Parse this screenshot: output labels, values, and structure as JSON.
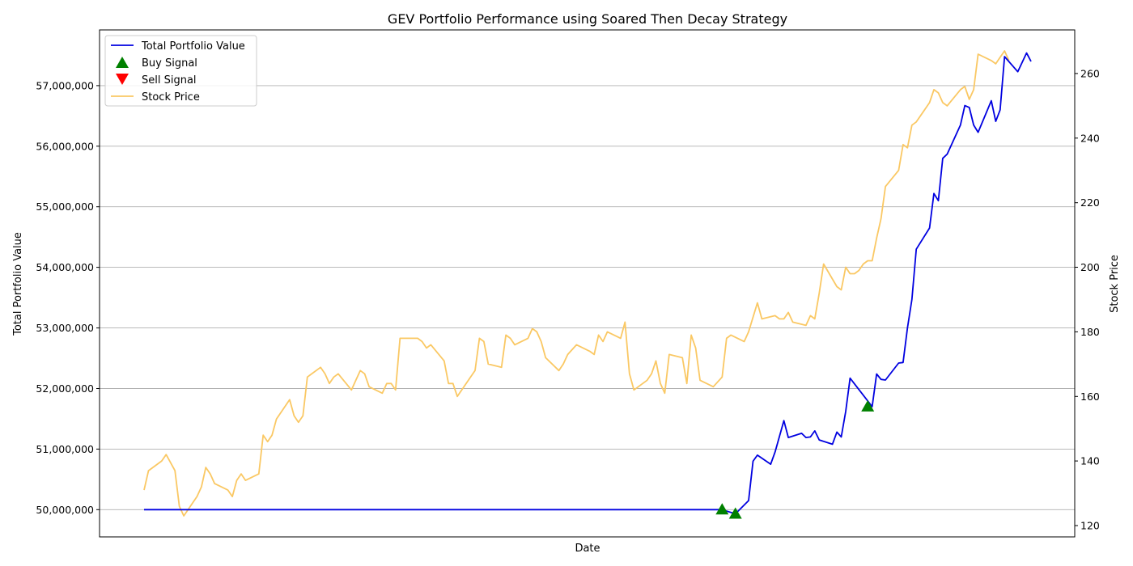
{
  "chart_data": {
    "type": "line",
    "title": "GEV Portfolio Performance using Soared Then Decay Strategy",
    "xlabel": "Date",
    "ylabel_left": "Total Portfolio Value",
    "ylabel_right": "Stock Price",
    "ylim_left": [
      49550000,
      57920000
    ],
    "ylim_right": [
      116.5,
      273.5
    ],
    "yticks_left": [
      50000000,
      51000000,
      52000000,
      53000000,
      54000000,
      55000000,
      56000000,
      57000000
    ],
    "ytick_labels_left": [
      "50,000,000",
      "51,000,000",
      "52,000,000",
      "53,000,000",
      "54,000,000",
      "55,000,000",
      "56,000,000",
      "57,000,000"
    ],
    "yticks_right": [
      120,
      140,
      160,
      180,
      200,
      220,
      240,
      260
    ],
    "ytick_labels_right": [
      "120",
      "140",
      "160",
      "180",
      "200",
      "220",
      "240",
      "260"
    ],
    "grid": "horizontal-left-axis",
    "legend_position": "top-left",
    "legend": [
      "Total Portfolio Value",
      "Buy Signal",
      "Sell Signal",
      "Stock Price"
    ],
    "colors": {
      "portfolio": "#0000e0",
      "stock": "#fac864",
      "buy": "#008000",
      "sell": "#ff0000",
      "grid": "#b0b0b0"
    },
    "series": [
      {
        "name": "Total Portfolio Value",
        "axis": "left",
        "points": [
          [
            0,
            50000000
          ],
          [
            131,
            50000000
          ],
          [
            134,
            49930000
          ],
          [
            137,
            50150000
          ],
          [
            138,
            50800000
          ],
          [
            139,
            50900000
          ],
          [
            142,
            50750000
          ],
          [
            143,
            50950000
          ],
          [
            145,
            51470000
          ],
          [
            146,
            51190000
          ],
          [
            149,
            51260000
          ],
          [
            150,
            51190000
          ],
          [
            151,
            51200000
          ],
          [
            152,
            51300000
          ],
          [
            153,
            51150000
          ],
          [
            156,
            51080000
          ],
          [
            157,
            51280000
          ],
          [
            158,
            51200000
          ],
          [
            159,
            51620000
          ],
          [
            160,
            52170000
          ],
          [
            165,
            51700000
          ],
          [
            166,
            52240000
          ],
          [
            167,
            52150000
          ],
          [
            168,
            52140000
          ],
          [
            171,
            52420000
          ],
          [
            172,
            52430000
          ],
          [
            173,
            53000000
          ],
          [
            174,
            53470000
          ],
          [
            175,
            54300000
          ],
          [
            178,
            54650000
          ],
          [
            179,
            55220000
          ],
          [
            180,
            55100000
          ],
          [
            181,
            55800000
          ],
          [
            182,
            55870000
          ],
          [
            185,
            56350000
          ],
          [
            186,
            56670000
          ],
          [
            187,
            56640000
          ],
          [
            188,
            56350000
          ],
          [
            189,
            56230000
          ],
          [
            192,
            56750000
          ],
          [
            193,
            56410000
          ],
          [
            194,
            56600000
          ],
          [
            195,
            57480000
          ],
          [
            198,
            57230000
          ],
          [
            200,
            57540000
          ],
          [
            201,
            57400000
          ]
        ]
      },
      {
        "name": "Stock Price",
        "axis": "right",
        "points": [
          [
            0,
            131
          ],
          [
            1,
            137
          ],
          [
            4,
            140
          ],
          [
            5,
            142
          ],
          [
            7,
            137
          ],
          [
            8,
            126
          ],
          [
            9,
            123
          ],
          [
            10,
            125
          ],
          [
            12,
            129
          ],
          [
            13,
            132
          ],
          [
            14,
            138
          ],
          [
            15,
            136
          ],
          [
            16,
            133
          ],
          [
            19,
            131
          ],
          [
            20,
            129
          ],
          [
            21,
            134
          ],
          [
            22,
            136
          ],
          [
            23,
            134
          ],
          [
            26,
            136
          ],
          [
            27,
            148
          ],
          [
            28,
            146
          ],
          [
            29,
            148
          ],
          [
            30,
            153
          ],
          [
            33,
            159
          ],
          [
            34,
            154
          ],
          [
            35,
            152
          ],
          [
            36,
            154
          ],
          [
            37,
            166
          ],
          [
            40,
            169
          ],
          [
            41,
            167
          ],
          [
            42,
            164
          ],
          [
            43,
            166
          ],
          [
            44,
            167
          ],
          [
            47,
            162
          ],
          [
            48,
            165
          ],
          [
            49,
            168
          ],
          [
            50,
            167
          ],
          [
            51,
            163
          ],
          [
            54,
            161
          ],
          [
            55,
            164
          ],
          [
            56,
            164
          ],
          [
            57,
            162
          ],
          [
            58,
            178
          ],
          [
            59,
            178
          ],
          [
            62,
            178
          ],
          [
            63,
            177
          ],
          [
            64,
            175
          ],
          [
            65,
            176
          ],
          [
            68,
            171
          ],
          [
            69,
            164
          ],
          [
            70,
            164
          ],
          [
            71,
            160
          ],
          [
            74,
            166
          ],
          [
            75,
            168
          ],
          [
            76,
            178
          ],
          [
            77,
            177
          ],
          [
            78,
            170
          ],
          [
            81,
            169
          ],
          [
            82,
            179
          ],
          [
            83,
            178
          ],
          [
            84,
            176
          ],
          [
            87,
            178
          ],
          [
            88,
            181
          ],
          [
            89,
            180
          ],
          [
            90,
            177
          ],
          [
            91,
            172
          ],
          [
            94,
            168
          ],
          [
            95,
            170
          ],
          [
            96,
            173
          ],
          [
            98,
            176
          ],
          [
            101,
            174
          ],
          [
            102,
            173
          ],
          [
            103,
            179
          ],
          [
            104,
            177
          ],
          [
            105,
            180
          ],
          [
            108,
            178
          ],
          [
            109,
            183
          ],
          [
            110,
            167
          ],
          [
            111,
            162
          ],
          [
            112,
            163
          ],
          [
            114,
            165
          ],
          [
            115,
            167
          ],
          [
            116,
            171
          ],
          [
            117,
            164
          ],
          [
            118,
            161
          ],
          [
            119,
            173
          ],
          [
            122,
            172
          ],
          [
            123,
            164
          ],
          [
            124,
            179
          ],
          [
            125,
            175
          ],
          [
            126,
            165
          ],
          [
            129,
            163
          ],
          [
            131,
            166
          ],
          [
            132,
            178
          ],
          [
            133,
            179
          ],
          [
            136,
            177
          ],
          [
            137,
            180
          ],
          [
            139,
            189
          ],
          [
            140,
            184
          ],
          [
            143,
            185
          ],
          [
            144,
            184
          ],
          [
            145,
            184
          ],
          [
            146,
            186
          ],
          [
            147,
            183
          ],
          [
            150,
            182
          ],
          [
            151,
            185
          ],
          [
            152,
            184
          ],
          [
            153,
            192
          ],
          [
            154,
            201
          ],
          [
            157,
            194
          ],
          [
            158,
            193
          ],
          [
            159,
            200
          ],
          [
            160,
            198
          ],
          [
            161,
            198
          ],
          [
            162,
            199
          ],
          [
            163,
            201
          ],
          [
            164,
            202
          ],
          [
            165,
            202
          ],
          [
            166,
            209
          ],
          [
            167,
            215
          ],
          [
            168,
            225
          ],
          [
            171,
            230
          ],
          [
            172,
            238
          ],
          [
            173,
            237
          ],
          [
            174,
            244
          ],
          [
            175,
            245
          ],
          [
            178,
            251
          ],
          [
            179,
            255
          ],
          [
            180,
            254
          ],
          [
            181,
            251
          ],
          [
            182,
            250
          ],
          [
            185,
            255
          ],
          [
            186,
            256
          ],
          [
            187,
            252
          ],
          [
            188,
            255
          ],
          [
            189,
            266
          ],
          [
            192,
            264
          ],
          [
            193,
            263
          ],
          [
            194,
            265
          ],
          [
            195,
            267
          ],
          [
            196,
            264
          ]
        ]
      }
    ],
    "signals": [
      {
        "name": "Buy Signal",
        "type": "buy",
        "x": 131,
        "value": 50000000
      },
      {
        "name": "Buy Signal",
        "type": "buy",
        "x": 134,
        "value": 49930000
      },
      {
        "name": "Buy Signal",
        "type": "buy",
        "x": 164,
        "value": 51700000
      }
    ]
  }
}
